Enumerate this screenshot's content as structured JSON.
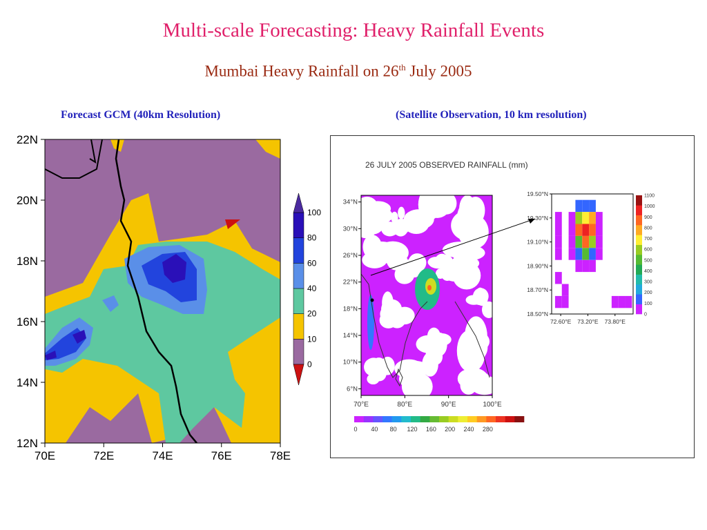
{
  "title": "Multi-scale Forecasting: Heavy Rainfall Events",
  "subtitle_main": "Mumbai Heavy Rainfall on 26",
  "subtitle_sup": "th",
  "subtitle_end": " July 2005",
  "forecast_label": "Forecast GCM (40km Resolution)",
  "observation_label": "(Satellite Observation, 10 km resolution)",
  "chart_data": [
    {
      "type": "heatmap",
      "name": "forecast-gcm-map",
      "x_ticks": [
        "70E",
        "72E",
        "74E",
        "76E",
        "78E"
      ],
      "y_ticks": [
        "12N",
        "14N",
        "16N",
        "18N",
        "20N",
        "22N"
      ],
      "xlim": [
        70,
        78
      ],
      "ylim": [
        12,
        22
      ],
      "legend": {
        "levels": [
          "0",
          "10",
          "20",
          "40",
          "60",
          "80",
          "100"
        ],
        "colors": [
          "#cc1111",
          "#9a6aa0",
          "#f5c400",
          "#5ec8a0",
          "#5a8fe8",
          "#2244dd",
          "#2a10b8",
          "#4b2aa0"
        ],
        "placement": "right"
      },
      "colors": {
        "background": "#9a6aa0",
        "c10": "#f5c400",
        "c20": "#5ec8a0",
        "c40": "#5a8fe8",
        "c60": "#2244dd",
        "c80": "#2a10b8"
      }
    },
    {
      "type": "heatmap",
      "name": "observed-rainfall-map",
      "title": "26 JULY 2005 OBSERVED RAINFALL (mm)",
      "x_ticks": [
        "70°E",
        "80°E",
        "90°E",
        "100°E"
      ],
      "y_ticks": [
        "6°N",
        "10°N",
        "14°N",
        "18°N",
        "22°N",
        "26°N",
        "30°N",
        "34°N"
      ],
      "xlim": [
        70,
        100
      ],
      "ylim": [
        5,
        35
      ],
      "colorbar": {
        "labels": [
          "0",
          "40",
          "80",
          "120",
          "160",
          "200",
          "240",
          "280"
        ],
        "colors": [
          "#cc22ff",
          "#9933ff",
          "#6655ff",
          "#3377ff",
          "#2299ee",
          "#22bbcc",
          "#22bb88",
          "#33aa44",
          "#66bb33",
          "#99cc22",
          "#ccdd22",
          "#eeee33",
          "#ffcc22",
          "#ff9922",
          "#ff6622",
          "#ee3322",
          "#cc1111",
          "#881111"
        ],
        "placement": "bottom"
      }
    },
    {
      "type": "heatmap",
      "name": "mumbai-zoom-map",
      "x_ticks": [
        "72.60°E",
        "73.20°E",
        "73.80°E"
      ],
      "y_ticks": [
        "18.50°N",
        "18.70°N",
        "18.90°N",
        "19.10°N",
        "19.30°N",
        "19.50°N"
      ],
      "xlim": [
        72.4,
        74.2
      ],
      "ylim": [
        18.5,
        19.5
      ],
      "colorbar": {
        "labels": [
          "0",
          "100",
          "200",
          "300",
          "400",
          "500",
          "600",
          "700",
          "800",
          "900",
          "1000",
          "1100"
        ],
        "colors": [
          "#cc22ff",
          "#3366ff",
          "#22aadd",
          "#22bbaa",
          "#22aa55",
          "#55bb33",
          "#99cc22",
          "#ffee33",
          "#ffaa22",
          "#ff6622",
          "#ee2222",
          "#991111"
        ],
        "placement": "right"
      },
      "cells": [
        {
          "lon": 72.55,
          "lat": 19.3,
          "v": 10
        },
        {
          "lon": 72.55,
          "lat": 19.2,
          "v": 10
        },
        {
          "lon": 72.55,
          "lat": 19.1,
          "v": 10
        },
        {
          "lon": 72.55,
          "lat": 19.0,
          "v": 10
        },
        {
          "lon": 72.55,
          "lat": 18.8,
          "v": 10
        },
        {
          "lon": 72.55,
          "lat": 18.6,
          "v": 10
        },
        {
          "lon": 72.7,
          "lat": 18.7,
          "v": 10
        },
        {
          "lon": 72.7,
          "lat": 18.6,
          "v": 10
        },
        {
          "lon": 72.85,
          "lat": 19.3,
          "v": 10
        },
        {
          "lon": 72.85,
          "lat": 19.2,
          "v": 10
        },
        {
          "lon": 72.85,
          "lat": 19.1,
          "v": 10
        },
        {
          "lon": 72.85,
          "lat": 19.0,
          "v": 10
        },
        {
          "lon": 73.0,
          "lat": 19.4,
          "v": 100
        },
        {
          "lon": 73.0,
          "lat": 19.3,
          "v": 600
        },
        {
          "lon": 73.0,
          "lat": 19.2,
          "v": 900
        },
        {
          "lon": 73.0,
          "lat": 19.1,
          "v": 500
        },
        {
          "lon": 73.0,
          "lat": 19.0,
          "v": 100
        },
        {
          "lon": 73.0,
          "lat": 18.9,
          "v": 10
        },
        {
          "lon": 73.15,
          "lat": 19.4,
          "v": 100
        },
        {
          "lon": 73.15,
          "lat": 19.3,
          "v": 700
        },
        {
          "lon": 73.15,
          "lat": 19.2,
          "v": 1000
        },
        {
          "lon": 73.15,
          "lat": 19.1,
          "v": 900
        },
        {
          "lon": 73.15,
          "lat": 19.0,
          "v": 500
        },
        {
          "lon": 73.15,
          "lat": 18.9,
          "v": 10
        },
        {
          "lon": 73.3,
          "lat": 19.4,
          "v": 100
        },
        {
          "lon": 73.3,
          "lat": 19.3,
          "v": 800
        },
        {
          "lon": 73.3,
          "lat": 19.2,
          "v": 900
        },
        {
          "lon": 73.3,
          "lat": 19.1,
          "v": 600
        },
        {
          "lon": 73.3,
          "lat": 19.0,
          "v": 100
        },
        {
          "lon": 73.3,
          "lat": 18.9,
          "v": 10
        },
        {
          "lon": 73.45,
          "lat": 19.3,
          "v": 10
        },
        {
          "lon": 73.45,
          "lat": 19.2,
          "v": 10
        },
        {
          "lon": 73.45,
          "lat": 19.1,
          "v": 10
        },
        {
          "lon": 73.45,
          "lat": 19.0,
          "v": 10
        },
        {
          "lon": 73.8,
          "lat": 18.6,
          "v": 10
        },
        {
          "lon": 73.95,
          "lat": 18.6,
          "v": 10
        },
        {
          "lon": 74.1,
          "lat": 18.6,
          "v": 10
        }
      ]
    }
  ]
}
